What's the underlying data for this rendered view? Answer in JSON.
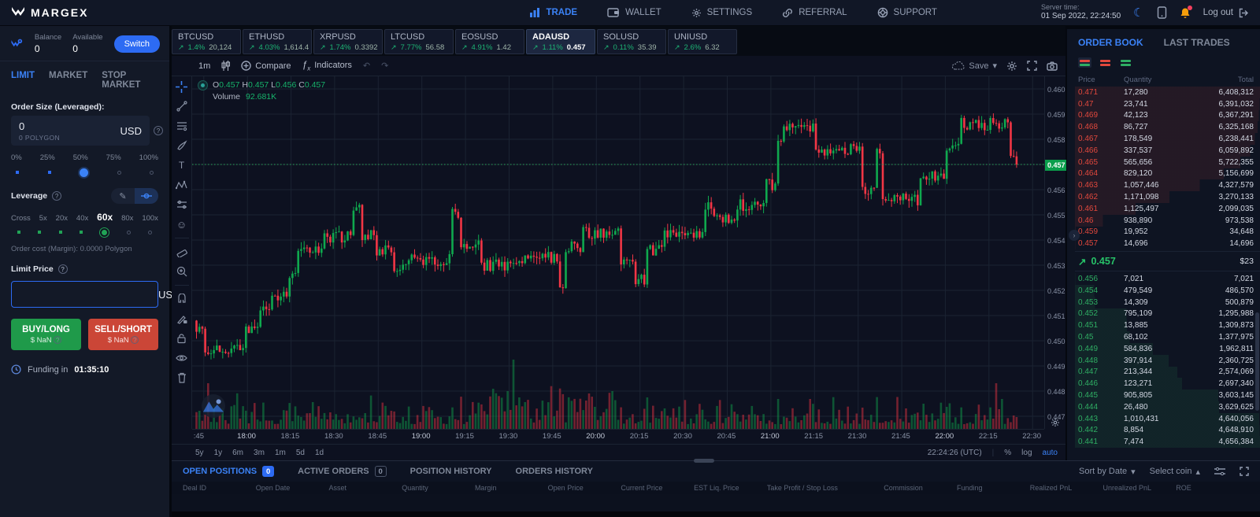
{
  "topbar": {
    "brand": "MARGEX",
    "nav": [
      {
        "label": "TRADE",
        "active": true
      },
      {
        "label": "WALLET",
        "active": false
      },
      {
        "label": "SETTINGS",
        "active": false
      },
      {
        "label": "REFERRAL",
        "active": false
      },
      {
        "label": "SUPPORT",
        "active": false
      }
    ],
    "server_time_label": "Server time:",
    "server_time": "01 Sep 2022, 22:24:50",
    "logout_label": "Log out"
  },
  "icons": {
    "arrow_up_right": "↗",
    "question": "?",
    "moon": "☾",
    "smiley": "☺",
    "pencil": "✎",
    "undo": "↶",
    "redo": "↷",
    "caret_down": "▾",
    "caret_up": "▴",
    "text_tool": "T",
    "chevron_right": "›",
    "plus": "+"
  },
  "sidebar": {
    "balance_label": "Balance",
    "balance_value": "0",
    "available_label": "Available",
    "available_value": "0",
    "switch_label": "Switch",
    "order_tabs": [
      "LIMIT",
      "MARKET",
      "STOP MARKET"
    ],
    "active_order_tab": "LIMIT",
    "order_size_label": "Order Size (Leveraged):",
    "order_size_value": "0",
    "order_size_sub": "0 POLYGON",
    "order_size_currency": "USD",
    "pct_marks": [
      "0%",
      "25%",
      "50%",
      "75%",
      "100%"
    ],
    "pct_selected_index": 2,
    "leverage_label": "Leverage",
    "leverage_marks": [
      "Cross",
      "5x",
      "20x",
      "40x",
      "60x",
      "80x",
      "100x"
    ],
    "leverage_selected_index": 4,
    "order_cost": "Order cost (Margin): 0.0000 Polygon",
    "limit_price_label": "Limit Price",
    "limit_price_value": "",
    "limit_price_currency": "USD",
    "buy_label": "BUY/LONG",
    "buy_sub": "$ NaN",
    "sell_label": "SELL/SHORT",
    "sell_sub": "$ NaN",
    "funding_prefix": "Funding in",
    "funding_time": "01:35:10"
  },
  "tickers": [
    {
      "symbol": "BTCUSD",
      "change": "1.4%",
      "price": "20,124",
      "active": false
    },
    {
      "symbol": "ETHUSD",
      "change": "4.03%",
      "price": "1,614.4",
      "active": false
    },
    {
      "symbol": "XRPUSD",
      "change": "1.74%",
      "price": "0.3392",
      "active": false
    },
    {
      "symbol": "LTCUSD",
      "change": "7.77%",
      "price": "56.58",
      "active": false
    },
    {
      "symbol": "EOSUSD",
      "change": "4.91%",
      "price": "1.42",
      "active": false
    },
    {
      "symbol": "ADAUSD",
      "change": "1.11%",
      "price": "0.457",
      "active": true
    },
    {
      "symbol": "SOLUSD",
      "change": "0.11%",
      "price": "35.39",
      "active": false
    },
    {
      "symbol": "UNIUSD",
      "change": "2.6%",
      "price": "6.32",
      "active": false
    }
  ],
  "chart": {
    "interval": "1m",
    "compare_label": "Compare",
    "indicators_label": "Indicators",
    "save_label": "Save",
    "legend": {
      "o": "O",
      "o_v": "0.457",
      "h": "H",
      "h_v": "0.457",
      "l": "L",
      "l_v": "0.456",
      "c": "C",
      "c_v": "0.457",
      "volume_label": "Volume",
      "volume_value": "92.681K"
    },
    "ranges": [
      "5y",
      "1y",
      "6m",
      "3m",
      "1m",
      "5d",
      "1d"
    ],
    "clock": "22:24:26 (UTC)",
    "axis_pct": "%",
    "axis_log": "log",
    "axis_auto": "auto"
  },
  "chart_data": {
    "type": "candlestick+volume",
    "symbol": "ADAUSD",
    "interval": "1m",
    "price_min": 0.4465,
    "price_max": 0.4605,
    "current_price": 0.457,
    "current_price_label": "0.457",
    "y_tick_min": 0.447,
    "y_tick_max": 0.46,
    "y_tick_step": 0.001,
    "view_start": -4,
    "view_end": 289,
    "candle_start": -3,
    "candle_end": 279,
    "x_ticks": [
      {
        "m": 0,
        "label": ":45",
        "bold": false
      },
      {
        "m": 15,
        "label": "18:00",
        "bold": true
      },
      {
        "m": 30,
        "label": "18:15",
        "bold": false
      },
      {
        "m": 45,
        "label": "18:30",
        "bold": false
      },
      {
        "m": 60,
        "label": "18:45",
        "bold": false
      },
      {
        "m": 75,
        "label": "19:00",
        "bold": true
      },
      {
        "m": 90,
        "label": "19:15",
        "bold": false
      },
      {
        "m": 105,
        "label": "19:30",
        "bold": false
      },
      {
        "m": 120,
        "label": "19:45",
        "bold": false
      },
      {
        "m": 135,
        "label": "20:00",
        "bold": true
      },
      {
        "m": 150,
        "label": "20:15",
        "bold": false
      },
      {
        "m": 165,
        "label": "20:30",
        "bold": false
      },
      {
        "m": 180,
        "label": "20:45",
        "bold": false
      },
      {
        "m": 195,
        "label": "21:00",
        "bold": true
      },
      {
        "m": 210,
        "label": "21:15",
        "bold": false
      },
      {
        "m": 225,
        "label": "21:30",
        "bold": false
      },
      {
        "m": 240,
        "label": "21:45",
        "bold": false
      },
      {
        "m": 255,
        "label": "22:00",
        "bold": true
      },
      {
        "m": 270,
        "label": "22:15",
        "bold": false
      },
      {
        "m": 285,
        "label": "22:30",
        "bold": false
      }
    ],
    "price_path": [
      [
        -3,
        0.4506
      ],
      [
        0,
        0.4496
      ],
      [
        14,
        0.4504
      ],
      [
        19,
        0.4512
      ],
      [
        23,
        0.4518
      ],
      [
        29,
        0.4527
      ],
      [
        32,
        0.4536
      ],
      [
        41,
        0.4541
      ],
      [
        51,
        0.4552
      ],
      [
        54,
        0.4542
      ],
      [
        59,
        0.4536
      ],
      [
        65,
        0.4528
      ],
      [
        70,
        0.4532
      ],
      [
        85,
        0.4551
      ],
      [
        88,
        0.4538
      ],
      [
        95,
        0.453
      ],
      [
        107,
        0.4533
      ],
      [
        122,
        0.4519
      ],
      [
        124,
        0.4537
      ],
      [
        130,
        0.4543
      ],
      [
        143,
        0.4531
      ],
      [
        148,
        0.4524
      ],
      [
        152,
        0.4536
      ],
      [
        158,
        0.4543
      ],
      [
        172,
        0.4553
      ],
      [
        175,
        0.4548
      ],
      [
        183,
        0.4554
      ],
      [
        193,
        0.4562
      ],
      [
        197,
        0.4578
      ],
      [
        199,
        0.4585
      ],
      [
        210,
        0.4576
      ],
      [
        226,
        0.456
      ],
      [
        231,
        0.4576
      ],
      [
        233,
        0.4556
      ],
      [
        246,
        0.4566
      ],
      [
        255,
        0.4578
      ],
      [
        260,
        0.4586
      ],
      [
        277,
        0.4571
      ],
      [
        280,
        0.4571
      ]
    ],
    "volume_spikes": {
      "1": 58,
      "36": 20,
      "106": 88,
      "108": 40,
      "110": 34,
      "132": 45,
      "152": 40,
      "255": 28,
      "272": 58,
      "274": 38
    },
    "colors": {
      "up": "#0fa84e",
      "down": "#f23645",
      "grid": "#1b2332",
      "price_line": "#2aa75a"
    }
  },
  "orderbook": {
    "tabs": [
      "ORDER BOOK",
      "LAST TRADES"
    ],
    "active_tab": "ORDER BOOK",
    "columns": [
      "Price",
      "Quantity",
      "Total"
    ],
    "asks": [
      [
        "0.471",
        "17,280",
        "6,408,312"
      ],
      [
        "0.47",
        "23,741",
        "6,391,032"
      ],
      [
        "0.469",
        "42,123",
        "6,367,291"
      ],
      [
        "0.468",
        "86,727",
        "6,325,168"
      ],
      [
        "0.467",
        "178,549",
        "6,238,441"
      ],
      [
        "0.466",
        "337,537",
        "6,059,892"
      ],
      [
        "0.465",
        "565,656",
        "5,722,355"
      ],
      [
        "0.464",
        "829,120",
        "5,156,699"
      ],
      [
        "0.463",
        "1,057,446",
        "4,327,579"
      ],
      [
        "0.462",
        "1,171,098",
        "3,270,133"
      ],
      [
        "0.461",
        "1,125,497",
        "2,099,035"
      ],
      [
        "0.46",
        "938,890",
        "973,538"
      ],
      [
        "0.459",
        "19,952",
        "34,648"
      ],
      [
        "0.457",
        "14,696",
        "14,696"
      ]
    ],
    "mid_price": "0.457",
    "mid_total": "$23",
    "bids": [
      [
        "0.456",
        "7,021",
        "7,021"
      ],
      [
        "0.454",
        "479,549",
        "486,570"
      ],
      [
        "0.453",
        "14,309",
        "500,879"
      ],
      [
        "0.452",
        "795,109",
        "1,295,988"
      ],
      [
        "0.451",
        "13,885",
        "1,309,873"
      ],
      [
        "0.45",
        "68,102",
        "1,377,975"
      ],
      [
        "0.449",
        "584,836",
        "1,962,811"
      ],
      [
        "0.448",
        "397,914",
        "2,360,725"
      ],
      [
        "0.447",
        "213,344",
        "2,574,069"
      ],
      [
        "0.446",
        "123,271",
        "2,697,340"
      ],
      [
        "0.445",
        "905,805",
        "3,603,145"
      ],
      [
        "0.444",
        "26,480",
        "3,629,625"
      ],
      [
        "0.443",
        "1,010,431",
        "4,640,056"
      ],
      [
        "0.442",
        "8,854",
        "4,648,910"
      ],
      [
        "0.441",
        "7,474",
        "4,656,384"
      ]
    ]
  },
  "positions": {
    "tabs": [
      {
        "label": "OPEN POSITIONS",
        "badge": "0",
        "badge_style": "blue",
        "active": true
      },
      {
        "label": "ACTIVE ORDERS",
        "badge": "0",
        "badge_style": "outline",
        "active": false
      },
      {
        "label": "POSITION HISTORY",
        "badge": null,
        "active": false
      },
      {
        "label": "ORDERS HISTORY",
        "badge": null,
        "active": false
      }
    ],
    "sort_by_label": "Sort by Date",
    "select_coin_label": "Select coin",
    "columns": [
      "Deal ID",
      "Open Date",
      "Asset",
      "Quantity",
      "Margin",
      "Open Price",
      "Current Price",
      "EST Liq. Price",
      "Take Profit / Stop Loss",
      "Commission",
      "Funding",
      "Realized PnL",
      "Unrealized PnL",
      "ROE"
    ]
  }
}
